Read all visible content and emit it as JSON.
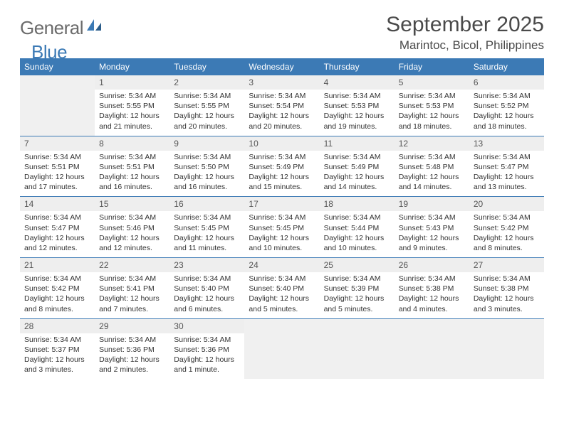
{
  "logo": {
    "word1": "General",
    "word2": "Blue"
  },
  "title": "September 2025",
  "location": "Marintoc, Bicol, Philippines",
  "colors": {
    "header_bg": "#3c7ab5",
    "header_fg": "#ffffff",
    "daynum_bg": "#eeeeee",
    "row_border": "#3c7ab5",
    "text": "#333333",
    "logo_gray": "#6b6b6b",
    "logo_blue": "#3c7ab5"
  },
  "weekdays": [
    "Sunday",
    "Monday",
    "Tuesday",
    "Wednesday",
    "Thursday",
    "Friday",
    "Saturday"
  ],
  "weeks": [
    [
      null,
      {
        "n": "1",
        "sunrise": "5:34 AM",
        "sunset": "5:55 PM",
        "daylight": "12 hours and 21 minutes."
      },
      {
        "n": "2",
        "sunrise": "5:34 AM",
        "sunset": "5:55 PM",
        "daylight": "12 hours and 20 minutes."
      },
      {
        "n": "3",
        "sunrise": "5:34 AM",
        "sunset": "5:54 PM",
        "daylight": "12 hours and 20 minutes."
      },
      {
        "n": "4",
        "sunrise": "5:34 AM",
        "sunset": "5:53 PM",
        "daylight": "12 hours and 19 minutes."
      },
      {
        "n": "5",
        "sunrise": "5:34 AM",
        "sunset": "5:53 PM",
        "daylight": "12 hours and 18 minutes."
      },
      {
        "n": "6",
        "sunrise": "5:34 AM",
        "sunset": "5:52 PM",
        "daylight": "12 hours and 18 minutes."
      }
    ],
    [
      {
        "n": "7",
        "sunrise": "5:34 AM",
        "sunset": "5:51 PM",
        "daylight": "12 hours and 17 minutes."
      },
      {
        "n": "8",
        "sunrise": "5:34 AM",
        "sunset": "5:51 PM",
        "daylight": "12 hours and 16 minutes."
      },
      {
        "n": "9",
        "sunrise": "5:34 AM",
        "sunset": "5:50 PM",
        "daylight": "12 hours and 16 minutes."
      },
      {
        "n": "10",
        "sunrise": "5:34 AM",
        "sunset": "5:49 PM",
        "daylight": "12 hours and 15 minutes."
      },
      {
        "n": "11",
        "sunrise": "5:34 AM",
        "sunset": "5:49 PM",
        "daylight": "12 hours and 14 minutes."
      },
      {
        "n": "12",
        "sunrise": "5:34 AM",
        "sunset": "5:48 PM",
        "daylight": "12 hours and 14 minutes."
      },
      {
        "n": "13",
        "sunrise": "5:34 AM",
        "sunset": "5:47 PM",
        "daylight": "12 hours and 13 minutes."
      }
    ],
    [
      {
        "n": "14",
        "sunrise": "5:34 AM",
        "sunset": "5:47 PM",
        "daylight": "12 hours and 12 minutes."
      },
      {
        "n": "15",
        "sunrise": "5:34 AM",
        "sunset": "5:46 PM",
        "daylight": "12 hours and 12 minutes."
      },
      {
        "n": "16",
        "sunrise": "5:34 AM",
        "sunset": "5:45 PM",
        "daylight": "12 hours and 11 minutes."
      },
      {
        "n": "17",
        "sunrise": "5:34 AM",
        "sunset": "5:45 PM",
        "daylight": "12 hours and 10 minutes."
      },
      {
        "n": "18",
        "sunrise": "5:34 AM",
        "sunset": "5:44 PM",
        "daylight": "12 hours and 10 minutes."
      },
      {
        "n": "19",
        "sunrise": "5:34 AM",
        "sunset": "5:43 PM",
        "daylight": "12 hours and 9 minutes."
      },
      {
        "n": "20",
        "sunrise": "5:34 AM",
        "sunset": "5:42 PM",
        "daylight": "12 hours and 8 minutes."
      }
    ],
    [
      {
        "n": "21",
        "sunrise": "5:34 AM",
        "sunset": "5:42 PM",
        "daylight": "12 hours and 8 minutes."
      },
      {
        "n": "22",
        "sunrise": "5:34 AM",
        "sunset": "5:41 PM",
        "daylight": "12 hours and 7 minutes."
      },
      {
        "n": "23",
        "sunrise": "5:34 AM",
        "sunset": "5:40 PM",
        "daylight": "12 hours and 6 minutes."
      },
      {
        "n": "24",
        "sunrise": "5:34 AM",
        "sunset": "5:40 PM",
        "daylight": "12 hours and 5 minutes."
      },
      {
        "n": "25",
        "sunrise": "5:34 AM",
        "sunset": "5:39 PM",
        "daylight": "12 hours and 5 minutes."
      },
      {
        "n": "26",
        "sunrise": "5:34 AM",
        "sunset": "5:38 PM",
        "daylight": "12 hours and 4 minutes."
      },
      {
        "n": "27",
        "sunrise": "5:34 AM",
        "sunset": "5:38 PM",
        "daylight": "12 hours and 3 minutes."
      }
    ],
    [
      {
        "n": "28",
        "sunrise": "5:34 AM",
        "sunset": "5:37 PM",
        "daylight": "12 hours and 3 minutes."
      },
      {
        "n": "29",
        "sunrise": "5:34 AM",
        "sunset": "5:36 PM",
        "daylight": "12 hours and 2 minutes."
      },
      {
        "n": "30",
        "sunrise": "5:34 AM",
        "sunset": "5:36 PM",
        "daylight": "12 hours and 1 minute."
      },
      null,
      null,
      null,
      null
    ]
  ],
  "labels": {
    "sunrise": "Sunrise:",
    "sunset": "Sunset:",
    "daylight": "Daylight:"
  }
}
